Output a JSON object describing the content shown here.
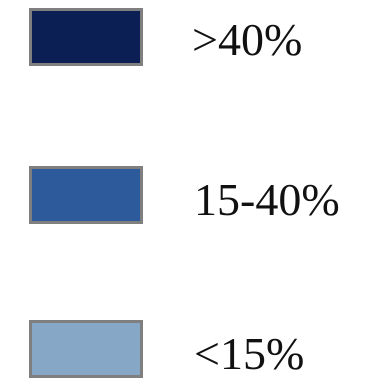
{
  "legend": {
    "items": [
      {
        "label": ">40%",
        "color": "#0b1f55"
      },
      {
        "label": "15-40%",
        "color": "#2d5a9a"
      },
      {
        "label": "<15%",
        "color": "#86a8c6"
      }
    ]
  }
}
